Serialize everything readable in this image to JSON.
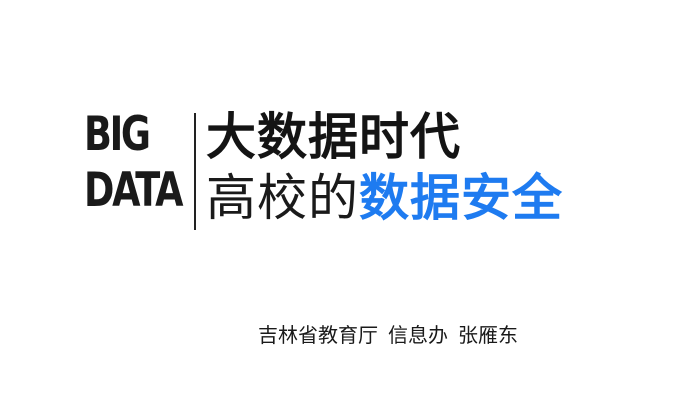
{
  "logo": {
    "line1": "BIG",
    "line2": "DATA"
  },
  "title": {
    "main": "大数据时代",
    "sub_plain": "高校的",
    "sub_accent": "数据安全"
  },
  "byline": {
    "org": "吉林省教育厅",
    "dept": "信息办",
    "author": "张雁东"
  },
  "colors": {
    "accent": "#1e7bf0",
    "text": "#1a1a1a",
    "background": "#ffffff"
  }
}
